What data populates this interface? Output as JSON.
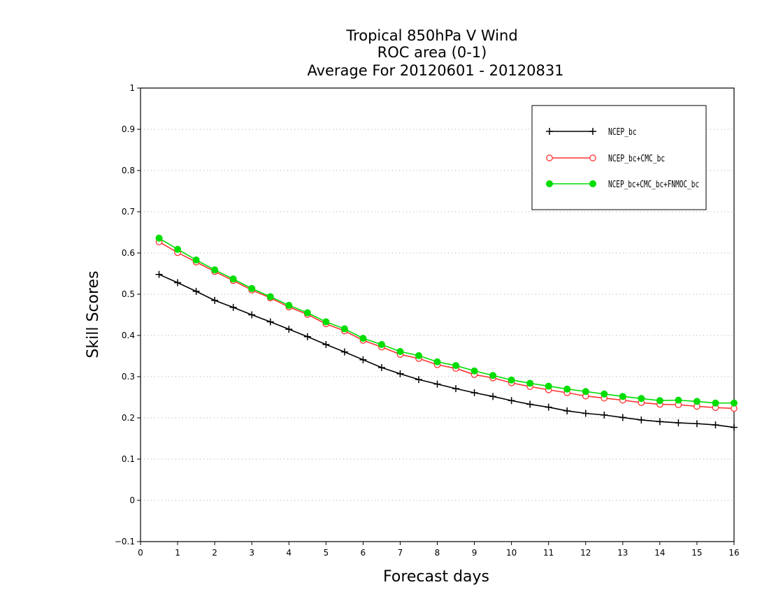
{
  "chart_data": {
    "type": "line",
    "title": [
      "Tropical 850hPa V Wind",
      "ROC area (0-1)",
      "Average For 20120601 - 20120831"
    ],
    "xlabel": "Forecast days",
    "ylabel": "Skill Scores",
    "xlim": [
      0,
      16
    ],
    "ylim": [
      -0.1,
      1
    ],
    "xticks": [
      "0",
      "1",
      "2",
      "3",
      "4",
      "5",
      "6",
      "7",
      "8",
      "9",
      "10",
      "11",
      "12",
      "13",
      "14",
      "15",
      "16"
    ],
    "yticks": [
      "−0.1",
      "0",
      "0.1",
      "0.2",
      "0.3",
      "0.4",
      "0.5",
      "0.6",
      "0.7",
      "0.8",
      "0.9",
      "1"
    ],
    "grid": "horizontal-dotted",
    "legend_position": "top-right",
    "x": [
      0.5,
      1,
      1.5,
      2,
      2.5,
      3,
      3.5,
      4,
      4.5,
      5,
      5.5,
      6,
      6.5,
      7,
      7.5,
      8,
      8.5,
      9,
      9.5,
      10,
      10.5,
      11,
      11.5,
      12,
      12.5,
      13,
      13.5,
      14,
      14.5,
      15,
      15.5,
      16
    ],
    "series": [
      {
        "name": "NCEP_bc",
        "color": "#000000",
        "marker": "plus",
        "values": [
          0.548,
          0.528,
          0.507,
          0.485,
          0.468,
          0.45,
          0.433,
          0.415,
          0.397,
          0.378,
          0.36,
          0.341,
          0.322,
          0.307,
          0.293,
          0.282,
          0.271,
          0.261,
          0.252,
          0.242,
          0.233,
          0.226,
          0.217,
          0.211,
          0.207,
          0.201,
          0.195,
          0.191,
          0.188,
          0.186,
          0.183,
          0.177
        ]
      },
      {
        "name": "NCEP_bc+CMC_bc",
        "color": "#ff3333",
        "marker": "open-circle",
        "values": [
          0.627,
          0.601,
          0.578,
          0.555,
          0.533,
          0.51,
          0.491,
          0.469,
          0.451,
          0.428,
          0.411,
          0.388,
          0.372,
          0.354,
          0.344,
          0.329,
          0.32,
          0.305,
          0.297,
          0.285,
          0.276,
          0.268,
          0.261,
          0.253,
          0.248,
          0.243,
          0.237,
          0.233,
          0.232,
          0.228,
          0.225,
          0.223
        ]
      },
      {
        "name": "NCEP_bc+CMC_bc+FNMOC_bc",
        "color": "#00dd00",
        "marker": "filled-circle",
        "values": [
          0.636,
          0.609,
          0.583,
          0.559,
          0.537,
          0.514,
          0.494,
          0.473,
          0.455,
          0.433,
          0.416,
          0.393,
          0.378,
          0.361,
          0.351,
          0.336,
          0.327,
          0.314,
          0.303,
          0.292,
          0.284,
          0.277,
          0.27,
          0.264,
          0.258,
          0.252,
          0.247,
          0.242,
          0.243,
          0.24,
          0.236,
          0.236
        ]
      }
    ]
  }
}
